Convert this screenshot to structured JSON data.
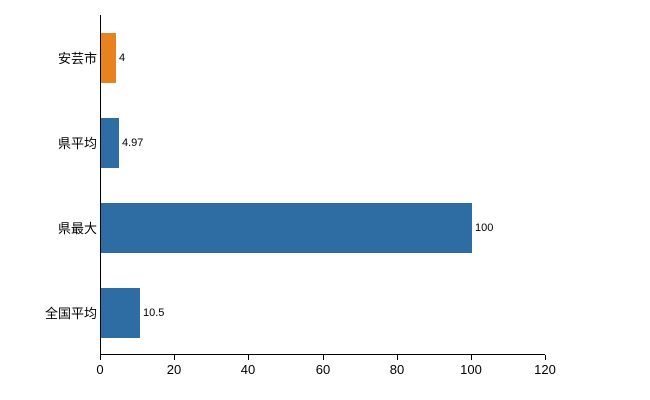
{
  "chart_data": {
    "type": "bar",
    "orientation": "horizontal",
    "title": "",
    "xlabel": "",
    "ylabel": "",
    "categories": [
      "安芸市",
      "県平均",
      "県最大",
      "全国平均"
    ],
    "values": [
      4,
      4.97,
      100,
      10.5
    ],
    "value_labels": [
      "4",
      "4.97",
      "100",
      "10.5"
    ],
    "bar_colors": [
      "#e8821e",
      "#2e6da4",
      "#2e6da4",
      "#2e6da4"
    ],
    "xlim": [
      0,
      120
    ],
    "x_ticks": [
      0,
      20,
      40,
      60,
      80,
      100,
      120
    ],
    "grid": false,
    "legend_position": "none",
    "axis_color": "#000000",
    "background_color": "#ffffff"
  }
}
